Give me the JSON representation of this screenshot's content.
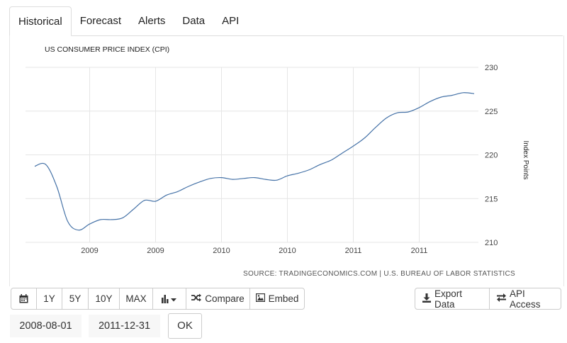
{
  "tabs": [
    {
      "label": "Historical",
      "active": true
    },
    {
      "label": "Forecast",
      "active": false
    },
    {
      "label": "Alerts",
      "active": false
    },
    {
      "label": "Data",
      "active": false
    },
    {
      "label": "API",
      "active": false
    }
  ],
  "chart_data": {
    "type": "line",
    "title": "US CONSUMER PRICE INDEX (CPI)",
    "ylabel": "Index Points",
    "source": "SOURCE: TRADINGECONOMICS.COM | U.S. BUREAU OF LABOR STATISTICS",
    "ylim": [
      210,
      230
    ],
    "yticks": [
      210,
      215,
      220,
      225,
      230
    ],
    "xtick_labels": [
      "2009",
      "2009",
      "2010",
      "2010",
      "2011",
      "2011"
    ],
    "grid": true,
    "line_color": "#4572a7",
    "series": [
      {
        "x": [
          "2008-08",
          "2008-09",
          "2008-10",
          "2008-11",
          "2008-12",
          "2009-01",
          "2009-02",
          "2009-03",
          "2009-04",
          "2009-05",
          "2009-06",
          "2009-07",
          "2009-08",
          "2009-09",
          "2009-10",
          "2009-11",
          "2009-12",
          "2010-01",
          "2010-02",
          "2010-03",
          "2010-04",
          "2010-05",
          "2010-06",
          "2010-07",
          "2010-08",
          "2010-09",
          "2010-10",
          "2010-11",
          "2010-12",
          "2011-01",
          "2011-02",
          "2011-03",
          "2011-04",
          "2011-05",
          "2011-06",
          "2011-07",
          "2011-08",
          "2011-09",
          "2011-10",
          "2011-11",
          "2011-12"
        ],
        "values": [
          218.7,
          218.9,
          216.4,
          212.4,
          211.4,
          212.1,
          212.6,
          212.6,
          212.8,
          213.8,
          214.8,
          214.7,
          215.4,
          215.8,
          216.4,
          216.9,
          217.3,
          217.4,
          217.2,
          217.3,
          217.4,
          217.2,
          217.1,
          217.6,
          217.9,
          218.3,
          218.9,
          219.4,
          220.2,
          221.0,
          221.9,
          223.1,
          224.2,
          224.8,
          224.9,
          225.4,
          226.1,
          226.6,
          226.8,
          227.1,
          227.0
        ]
      }
    ]
  },
  "toolbar": {
    "calendar_icon": "calendar-icon",
    "range_1y": "1Y",
    "range_5y": "5Y",
    "range_10y": "10Y",
    "range_max": "MAX",
    "chart_type_icon": "bar-chart-icon",
    "compare_label": "Compare",
    "embed_label": "Embed",
    "export_label": "Export Data",
    "api_access_label": "API Access"
  },
  "date_range": {
    "start": "2008-08-01",
    "end": "2011-12-31",
    "ok_label": "OK"
  }
}
